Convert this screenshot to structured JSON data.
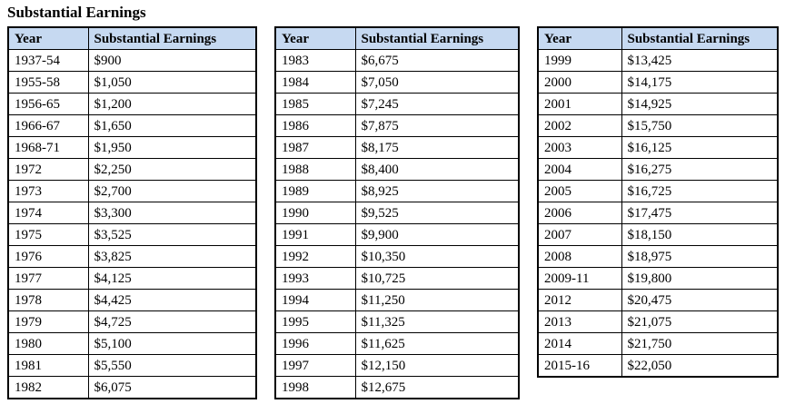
{
  "title": "Substantial Earnings",
  "colors": {
    "header_bg": "#C6D9F1",
    "border": "#000000",
    "text": "#000000"
  },
  "tables": [
    {
      "headers": [
        "Year",
        "Substantial Earnings"
      ],
      "rows": [
        [
          "1937-54",
          "$900"
        ],
        [
          "1955-58",
          "$1,050"
        ],
        [
          "1956-65",
          "$1,200"
        ],
        [
          "1966-67",
          "$1,650"
        ],
        [
          "1968-71",
          "$1,950"
        ],
        [
          "1972",
          "$2,250"
        ],
        [
          "1973",
          "$2,700"
        ],
        [
          "1974",
          "$3,300"
        ],
        [
          "1975",
          "$3,525"
        ],
        [
          "1976",
          "$3,825"
        ],
        [
          "1977",
          "$4,125"
        ],
        [
          "1978",
          "$4,425"
        ],
        [
          "1979",
          "$4,725"
        ],
        [
          "1980",
          "$5,100"
        ],
        [
          "1981",
          "$5,550"
        ],
        [
          "1982",
          "$6,075"
        ]
      ]
    },
    {
      "headers": [
        "Year",
        "Substantial Earnings"
      ],
      "rows": [
        [
          "1983",
          "$6,675"
        ],
        [
          "1984",
          "$7,050"
        ],
        [
          "1985",
          "$7,245"
        ],
        [
          "1986",
          "$7,875"
        ],
        [
          "1987",
          "$8,175"
        ],
        [
          "1988",
          "$8,400"
        ],
        [
          "1989",
          "$8,925"
        ],
        [
          "1990",
          "$9,525"
        ],
        [
          "1991",
          "$9,900"
        ],
        [
          "1992",
          "$10,350"
        ],
        [
          "1993",
          "$10,725"
        ],
        [
          "1994",
          "$11,250"
        ],
        [
          "1995",
          "$11,325"
        ],
        [
          "1996",
          "$11,625"
        ],
        [
          "1997",
          "$12,150"
        ],
        [
          "1998",
          "$12,675"
        ]
      ]
    },
    {
      "headers": [
        "Year",
        "Substantial Earnings"
      ],
      "rows": [
        [
          "1999",
          "$13,425"
        ],
        [
          "2000",
          "$14,175"
        ],
        [
          "2001",
          "$14,925"
        ],
        [
          "2002",
          "$15,750"
        ],
        [
          "2003",
          "$16,125"
        ],
        [
          "2004",
          "$16,275"
        ],
        [
          "2005",
          "$16,725"
        ],
        [
          "2006",
          "$17,475"
        ],
        [
          "2007",
          "$18,150"
        ],
        [
          "2008",
          "$18,975"
        ],
        [
          "2009-11",
          "$19,800"
        ],
        [
          "2012",
          "$20,475"
        ],
        [
          "2013",
          "$21,075"
        ],
        [
          "2014",
          "$21,750"
        ],
        [
          "2015-16",
          "$22,050"
        ]
      ]
    }
  ]
}
